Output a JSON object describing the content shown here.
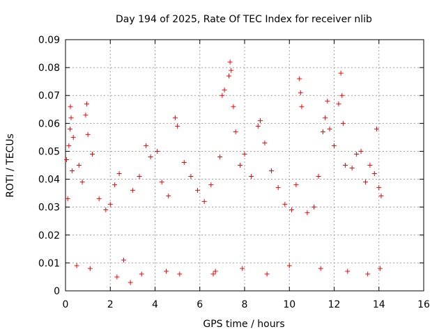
{
  "chart_data": {
    "type": "scatter",
    "title": "Day 194 of 2025, Rate Of TEC Index for receiver nlib",
    "xlabel": "GPS time / hours",
    "ylabel": "ROTI / TECUs",
    "xlim": [
      0,
      16
    ],
    "ylim": [
      0,
      0.09
    ],
    "x_ticks": [
      "0",
      "2",
      "4",
      "6",
      "8",
      "10",
      "12",
      "14",
      "16"
    ],
    "y_ticks": [
      "0",
      "0.01",
      "0.02",
      "0.03",
      "0.04",
      "0.05",
      "0.06",
      "0.07",
      "0.08",
      "0.09"
    ],
    "grid": true,
    "marker": "+",
    "color": "#ff0000",
    "series": [
      {
        "name": "ROTI",
        "points": [
          [
            0.05,
            0.047
          ],
          [
            0.1,
            0.033
          ],
          [
            0.15,
            0.052
          ],
          [
            0.2,
            0.058
          ],
          [
            0.22,
            0.066
          ],
          [
            0.25,
            0.062
          ],
          [
            0.3,
            0.043
          ],
          [
            0.35,
            0.055
          ],
          [
            0.6,
            0.045
          ],
          [
            0.75,
            0.039
          ],
          [
            0.9,
            0.063
          ],
          [
            0.95,
            0.067
          ],
          [
            1.0,
            0.056
          ],
          [
            1.2,
            0.049
          ],
          [
            1.5,
            0.033
          ],
          [
            1.8,
            0.029
          ],
          [
            2.0,
            0.031
          ],
          [
            2.2,
            0.038
          ],
          [
            2.4,
            0.042
          ],
          [
            2.6,
            0.011
          ],
          [
            2.9,
            0.003
          ],
          [
            3.0,
            0.036
          ],
          [
            3.3,
            0.041
          ],
          [
            3.6,
            0.052
          ],
          [
            3.8,
            0.048
          ],
          [
            4.1,
            0.05
          ],
          [
            4.3,
            0.039
          ],
          [
            4.6,
            0.034
          ],
          [
            4.9,
            0.062
          ],
          [
            5.0,
            0.059
          ],
          [
            5.3,
            0.046
          ],
          [
            5.6,
            0.041
          ],
          [
            5.9,
            0.036
          ],
          [
            6.2,
            0.032
          ],
          [
            6.5,
            0.038
          ],
          [
            6.6,
            0.006
          ],
          [
            6.9,
            0.048
          ],
          [
            7.0,
            0.07
          ],
          [
            7.1,
            0.072
          ],
          [
            7.3,
            0.077
          ],
          [
            7.35,
            0.082
          ],
          [
            7.4,
            0.079
          ],
          [
            7.5,
            0.066
          ],
          [
            7.6,
            0.057
          ],
          [
            7.8,
            0.045
          ],
          [
            8.0,
            0.049
          ],
          [
            8.3,
            0.041
          ],
          [
            8.6,
            0.059
          ],
          [
            8.7,
            0.061
          ],
          [
            8.9,
            0.053
          ],
          [
            9.2,
            0.043
          ],
          [
            9.5,
            0.037
          ],
          [
            9.8,
            0.031
          ],
          [
            10.1,
            0.029
          ],
          [
            10.3,
            0.038
          ],
          [
            10.45,
            0.076
          ],
          [
            10.5,
            0.071
          ],
          [
            10.55,
            0.066
          ],
          [
            10.8,
            0.028
          ],
          [
            11.1,
            0.03
          ],
          [
            11.3,
            0.041
          ],
          [
            11.5,
            0.057
          ],
          [
            11.6,
            0.062
          ],
          [
            11.7,
            0.068
          ],
          [
            11.8,
            0.058
          ],
          [
            12.0,
            0.052
          ],
          [
            12.2,
            0.067
          ],
          [
            12.3,
            0.078
          ],
          [
            12.35,
            0.07
          ],
          [
            12.4,
            0.06
          ],
          [
            12.5,
            0.045
          ],
          [
            12.8,
            0.044
          ],
          [
            13.0,
            0.049
          ],
          [
            13.2,
            0.05
          ],
          [
            13.4,
            0.039
          ],
          [
            13.6,
            0.045
          ],
          [
            13.8,
            0.042
          ],
          [
            13.9,
            0.058
          ],
          [
            14.0,
            0.037
          ],
          [
            14.1,
            0.034
          ],
          [
            0.5,
            0.009
          ],
          [
            1.1,
            0.008
          ],
          [
            2.3,
            0.005
          ],
          [
            3.4,
            0.006
          ],
          [
            4.5,
            0.007
          ],
          [
            5.1,
            0.006
          ],
          [
            6.7,
            0.007
          ],
          [
            7.9,
            0.008
          ],
          [
            9.0,
            0.006
          ],
          [
            10.0,
            0.009
          ],
          [
            11.4,
            0.008
          ],
          [
            12.6,
            0.007
          ],
          [
            13.5,
            0.006
          ],
          [
            14.05,
            0.008
          ]
        ]
      }
    ]
  }
}
